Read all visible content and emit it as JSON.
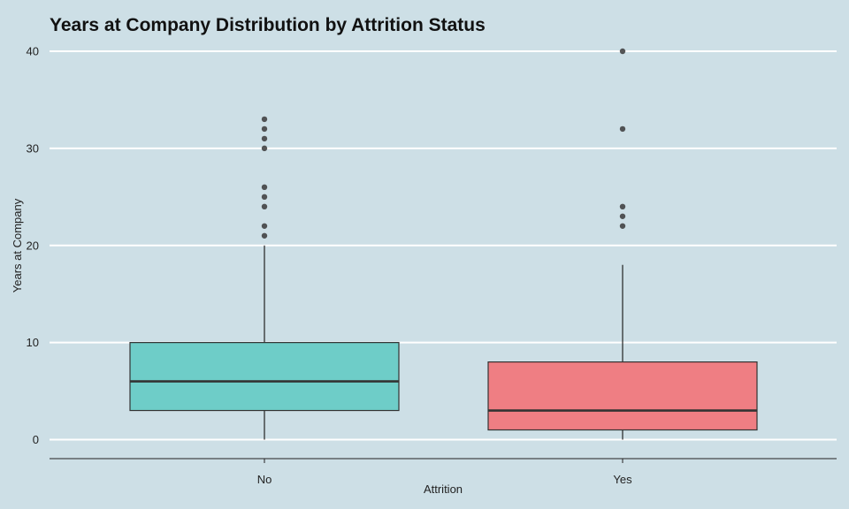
{
  "chart_data": {
    "type": "boxplot",
    "title": "Years at Company Distribution by Attrition Status",
    "xlabel": "Attrition",
    "ylabel": "Years at Company",
    "ylim": [
      -2,
      42
    ],
    "y_ticks": [
      0,
      10,
      20,
      30,
      40
    ],
    "y_tick_labels": [
      "0",
      "10",
      "20",
      "30",
      "40"
    ],
    "grid": "horizontal major",
    "legend": "none",
    "categories": [
      "No",
      "Yes"
    ],
    "series": [
      {
        "category": "No",
        "color": "#6ecdc8",
        "whisker_low": 0,
        "q1": 3,
        "median": 6,
        "q3": 10,
        "whisker_high": 20,
        "outliers": [
          21,
          22,
          24,
          25,
          26,
          30,
          31,
          32,
          33
        ]
      },
      {
        "category": "Yes",
        "color": "#ef7e83",
        "whisker_low": 0,
        "q1": 1,
        "median": 3,
        "q3": 8,
        "whisker_high": 18,
        "outliers": [
          22,
          23,
          24,
          32,
          40
        ]
      }
    ]
  }
}
